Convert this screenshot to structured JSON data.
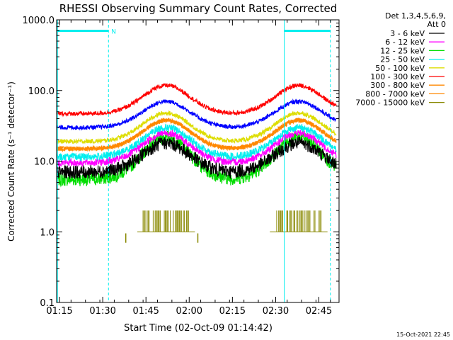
{
  "chart_data": {
    "type": "line",
    "title": "RHESSI Observing Summary Count Rates, Corrected",
    "xlabel": "Start Time (02-Oct-09 01:14:42)",
    "ylabel": "Corrected Count Rate (s⁻¹ detector⁻¹)",
    "yscale": "log",
    "ylim": [
      0.1,
      1000
    ],
    "xlim_minutes_after_0114": [
      0,
      98
    ],
    "x_ticks": [
      "01:15",
      "01:30",
      "01:45",
      "02:00",
      "02:15",
      "02:30",
      "02:45"
    ],
    "y_ticks": [
      "0.1",
      "1.0",
      "10.0",
      "100.0",
      "1000.0"
    ],
    "legend_header": [
      "Det 1,3,4,5,6,9,",
      "Att 0"
    ],
    "legend_position": "right",
    "series": [
      {
        "name": "3 - 6 keV",
        "color": "#000000",
        "base": 7,
        "peak": 18
      },
      {
        "name": "6 - 12 keV",
        "color": "#ff00ff",
        "base": 9.5,
        "peak": 25
      },
      {
        "name": "12 - 25 keV",
        "color": "#00dd00",
        "base": 5.5,
        "peak": 22
      },
      {
        "name": "25 - 50 keV",
        "color": "#00eeee",
        "base": 11.5,
        "peak": 30
      },
      {
        "name": "50 - 100 keV",
        "color": "#dddd00",
        "base": 19,
        "peak": 48
      },
      {
        "name": "100 - 300 keV",
        "color": "#ff0000",
        "base": 47,
        "peak": 118
      },
      {
        "name": "300 - 800 keV",
        "color": "#ff8800",
        "base": 15,
        "peak": 38
      },
      {
        "name": "800 - 7000 keV",
        "color": "#ff8800",
        "base": 15,
        "peak": 38
      },
      {
        "name": "7000 - 15000 keV",
        "color": "#888800",
        "base": 1.0,
        "peak": 2.0
      },
      {
        "name": "",
        "color": "#0000ff",
        "base": 30,
        "peak": 70
      }
    ],
    "peak_times": [
      "01:52",
      "02:38"
    ],
    "saa_intervals": [
      [
        "01:14",
        "01:32"
      ],
      [
        "02:33",
        "02:49"
      ]
    ],
    "saa_label": "N"
  },
  "footer": {
    "timestamp": "15-Oct-2021 22:45"
  }
}
